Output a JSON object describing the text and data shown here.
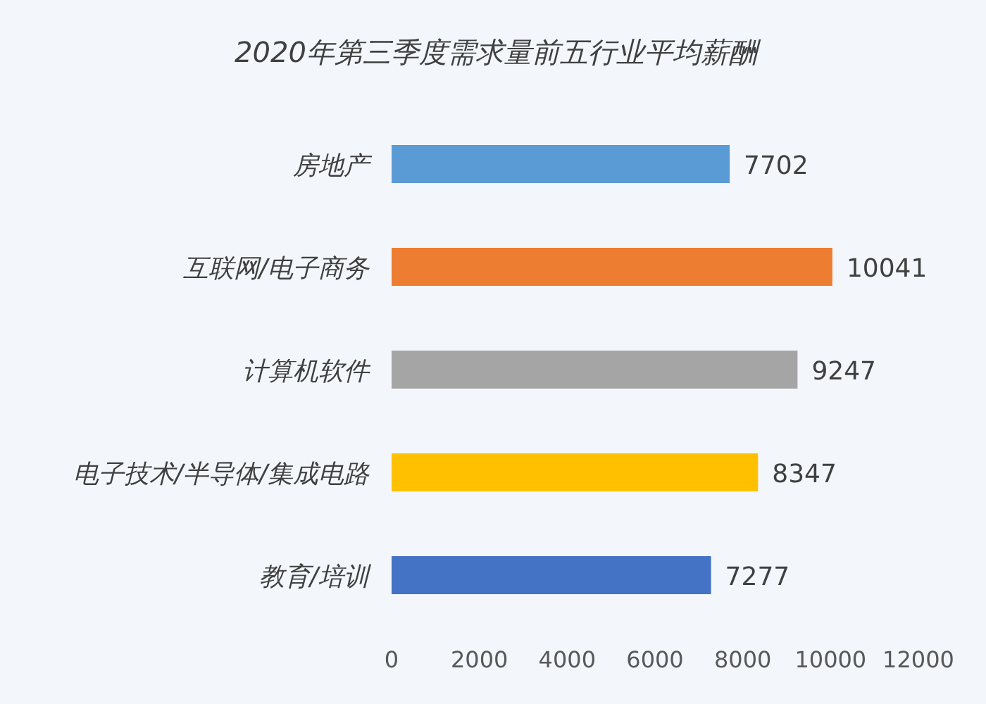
{
  "chart_data": {
    "type": "bar",
    "orientation": "horizontal",
    "title": "2020年第三季度需求量前五行业平均薪酬",
    "categories": [
      "房地产",
      "互联网/电子商务",
      "计算机软件",
      "电子技术/半导体/集成电路",
      "教育/培训"
    ],
    "values": [
      7702,
      10041,
      9247,
      8347,
      7277
    ],
    "colors": [
      "#5b9bd5",
      "#ed7d31",
      "#a5a5a5",
      "#ffc000",
      "#4472c4"
    ],
    "xlim": [
      0,
      12000
    ],
    "xticks": [
      0,
      2000,
      4000,
      6000,
      8000,
      10000,
      12000
    ],
    "data_labels": true
  }
}
